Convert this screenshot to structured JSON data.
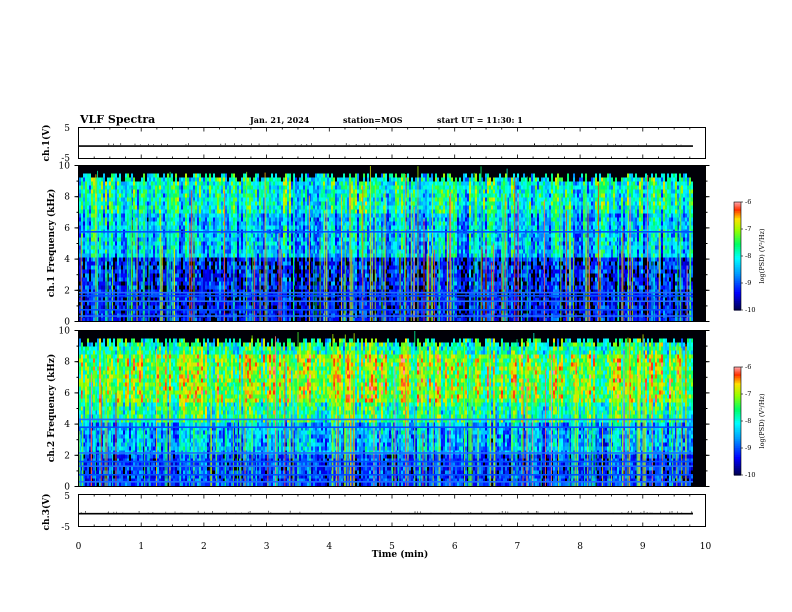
{
  "header": {
    "title": "VLF Spectra",
    "date": "Jan. 21, 2024",
    "station": "station=MOS",
    "start": "start UT =  11:30: 1"
  },
  "chart_data": [
    {
      "type": "line",
      "panel": "ch1-waveform",
      "ylabel": "ch.1(V)",
      "ylim": [
        -5,
        5
      ],
      "yticks": [
        5,
        -5
      ],
      "series": [
        {
          "values": [
            -1.0,
            -1.0
          ]
        }
      ]
    },
    {
      "type": "heatmap",
      "panel": "ch1-spectrogram",
      "ylabel": "ch.1 Frequency (kHz)",
      "ylim": [
        0,
        10
      ],
      "yticks": [
        0,
        2,
        4,
        6,
        8,
        10
      ],
      "xlim": [
        0,
        10
      ],
      "data_end_min": 9.8,
      "colorbar": {
        "label": "log(PSD) (V²/Hz)",
        "ticks": [
          "-6",
          "-7",
          "-8",
          "-9",
          "-10"
        ],
        "range": [
          -10,
          -6
        ]
      },
      "lines_khz": [
        0.35,
        0.75,
        1.3,
        1.65,
        1.85,
        5.75
      ],
      "seed": 11
    },
    {
      "type": "heatmap",
      "panel": "ch2-spectrogram",
      "ylabel": "ch.2 Frequency (kHz)",
      "ylim": [
        0,
        10
      ],
      "yticks": [
        0,
        2,
        4,
        6,
        8,
        10
      ],
      "xlim": [
        0,
        10
      ],
      "data_end_min": 9.8,
      "colorbar": {
        "label": "log(PSD) (V²/Hz)",
        "ticks": [
          "-6",
          "-7",
          "-8",
          "-9",
          "-10"
        ],
        "range": [
          -10,
          -6
        ]
      },
      "lines_khz": [
        0.3,
        0.75,
        1.3,
        1.6,
        2.15,
        3.8,
        4.3
      ],
      "seed": 29
    },
    {
      "type": "line",
      "panel": "ch3-waveform",
      "ylabel": "ch.3(V)",
      "ylim": [
        -5,
        5
      ],
      "yticks": [
        5,
        -5
      ],
      "xlabel": "Time (min)",
      "xlim": [
        0,
        10
      ],
      "xticks": [
        0,
        1,
        2,
        3,
        4,
        5,
        6,
        7,
        8,
        9,
        10
      ],
      "series": [
        {
          "values": [
            -1.0,
            -1.0
          ]
        }
      ]
    }
  ]
}
